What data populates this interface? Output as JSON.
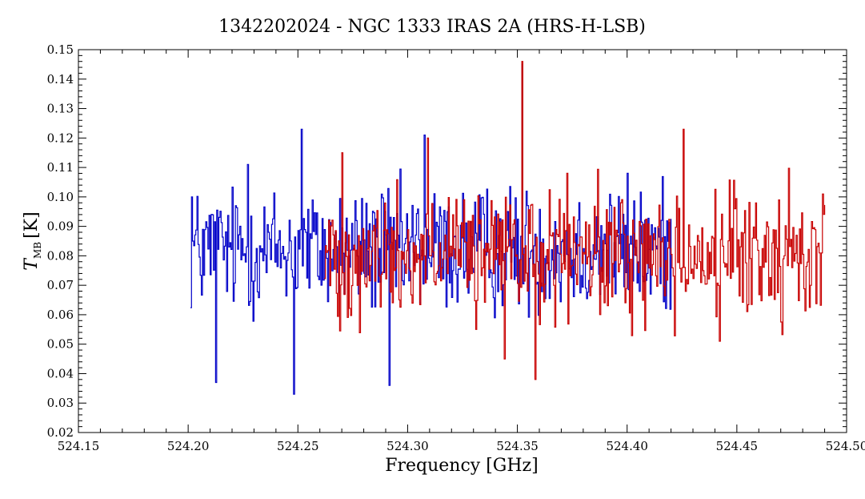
{
  "chart_data": {
    "type": "line",
    "title": "1342202024 - NGC 1333 IRAS 2A (HRS-H-LSB)",
    "xlabel": "Frequency [GHz]",
    "ylabel": {
      "main": "T",
      "sub": "MB",
      "unit": "[K]"
    },
    "xlim": [
      524.15,
      524.5
    ],
    "ylim": [
      0.02,
      0.15
    ],
    "x_ticks": [
      "524.15",
      "524.20",
      "524.25",
      "524.30",
      "524.35",
      "524.40",
      "524.45",
      "524.50"
    ],
    "y_ticks": [
      "0.02",
      "0.03",
      "0.04",
      "0.05",
      "0.06",
      "0.07",
      "0.08",
      "0.09",
      "0.10",
      "0.11",
      "0.12",
      "0.13",
      "0.14",
      "0.15"
    ],
    "grid": false,
    "legend": "none",
    "series": [
      {
        "color": "#0000c8",
        "x_start": 524.201,
        "x_end": 524.42,
        "baseline": 0.082,
        "noise_amplitude": 0.02,
        "notable_points": [
          {
            "x": 524.2015,
            "y": 0.1
          },
          {
            "x": 524.2125,
            "y": 0.037
          },
          {
            "x": 524.227,
            "y": 0.111
          },
          {
            "x": 524.248,
            "y": 0.033
          },
          {
            "x": 524.2515,
            "y": 0.123
          },
          {
            "x": 524.2915,
            "y": 0.036
          },
          {
            "x": 524.3075,
            "y": 0.121
          },
          {
            "x": 524.352,
            "y": 0.145
          },
          {
            "x": 524.4,
            "y": 0.108
          }
        ]
      },
      {
        "color": "#c80000",
        "x_start": 524.262,
        "x_end": 524.49,
        "baseline": 0.08,
        "noise_amplitude": 0.02,
        "notable_points": [
          {
            "x": 524.27,
            "y": 0.115
          },
          {
            "x": 524.309,
            "y": 0.12
          },
          {
            "x": 524.331,
            "y": 0.055
          },
          {
            "x": 524.344,
            "y": 0.045
          },
          {
            "x": 524.352,
            "y": 0.146
          },
          {
            "x": 524.358,
            "y": 0.038
          },
          {
            "x": 524.4255,
            "y": 0.123
          },
          {
            "x": 524.442,
            "y": 0.051
          },
          {
            "x": 524.489,
            "y": 0.101
          }
        ]
      }
    ]
  }
}
